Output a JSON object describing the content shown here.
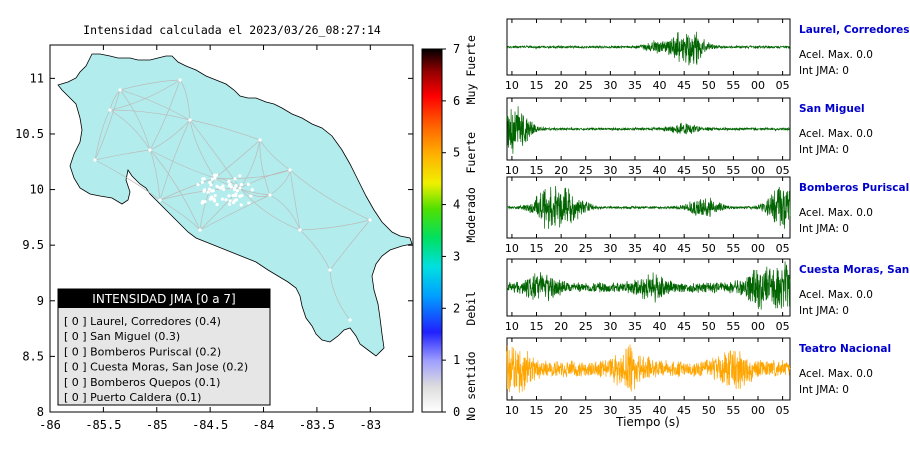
{
  "map": {
    "title": "Intensidad calculada el 2023/03/26_08:27:14",
    "x_ticks": [
      "-86",
      "-85.5",
      "-85",
      "-84.5",
      "-84",
      "-83.5",
      "-83"
    ],
    "y_ticks": [
      "11",
      "10.5",
      "10",
      "9.5",
      "9",
      "8.5",
      "8"
    ],
    "xlim": [
      -86,
      -82.6
    ],
    "ylim": [
      8,
      11.3
    ],
    "land_color": "#b3ecec",
    "road_color": "#bbbbbb"
  },
  "colorbar": {
    "ticks": [
      "0",
      "1",
      "2",
      "3",
      "4",
      "5",
      "6",
      "7"
    ],
    "labels": [
      {
        "text": "No sentido",
        "v": 0.5
      },
      {
        "text": "Debil",
        "v": 2
      },
      {
        "text": "Moderado",
        "v": 3.8
      },
      {
        "text": "Fuerte",
        "v": 5
      },
      {
        "text": "Muy Fuerte",
        "v": 6.6
      }
    ]
  },
  "legend": {
    "title": "INTENSIDAD JMA [0 a 7]",
    "items": [
      "[ 0 ]  Laurel, Corredores (0.4)",
      "[ 0 ]  San Miguel (0.3)",
      "[ 0 ]  Bomberos Puriscal (0.2)",
      "[ 0 ]  Cuesta Moras, San Jose (0.2)",
      "[ 0 ]  Bomberos Quepos (0.1)",
      "[ 0 ]  Puerto Caldera (0.1)"
    ]
  },
  "chart_data": [
    {
      "type": "map",
      "title": "Intensidad calculada el 2023/03/26_08:27:14",
      "xlim": [
        -86,
        -82.6
      ],
      "ylim": [
        8,
        11.3
      ],
      "x_ticks": [
        -86,
        -85.5,
        -85,
        -84.5,
        -84,
        -83.5,
        -83
      ],
      "y_ticks": [
        11,
        10.5,
        10,
        9.5,
        9,
        8.5,
        8
      ],
      "colorbar": {
        "min": 0,
        "max": 7,
        "labels": [
          "No sentido",
          "Debil",
          "Moderado",
          "Fuerte",
          "Muy Fuerte"
        ]
      },
      "stations": [
        {
          "name": "Laurel, Corredores",
          "jma": 0,
          "intensity": 0.4
        },
        {
          "name": "San Miguel",
          "jma": 0,
          "intensity": 0.3
        },
        {
          "name": "Bomberos Puriscal",
          "jma": 0,
          "intensity": 0.2
        },
        {
          "name": "Cuesta Moras, San Jose",
          "jma": 0,
          "intensity": 0.2
        },
        {
          "name": "Bomberos Quepos",
          "jma": 0,
          "intensity": 0.1
        },
        {
          "name": "Puerto Caldera",
          "jma": 0,
          "intensity": 0.1
        }
      ]
    },
    {
      "type": "line",
      "xlabel": "Tiempo (s)",
      "x_ticks": [
        "10",
        "15",
        "20",
        "25",
        "30",
        "35",
        "40",
        "45",
        "50",
        "55",
        "00",
        "05"
      ],
      "series": [
        {
          "name": "Laurel, Corredores",
          "acel_max": "0.0",
          "int_jma": "0",
          "color": "#006400",
          "bursts": [
            {
              "t": 46,
              "a": 0.9
            },
            {
              "t": 40,
              "a": 0.25
            }
          ]
        },
        {
          "name": "San Miguel",
          "acel_max": "0.0",
          "int_jma": "0",
          "color": "#006400",
          "bursts": [
            {
              "t": 10.5,
              "a": 0.9
            },
            {
              "t": 45,
              "a": 0.2
            }
          ]
        },
        {
          "name": "Bomberos Puriscal",
          "acel_max": "0.0",
          "int_jma": "0",
          "color": "#006400",
          "bursts": [
            {
              "t": 17.5,
              "a": 0.8
            },
            {
              "t": 22,
              "a": 0.6
            },
            {
              "t": 49,
              "a": 0.4
            },
            {
              "t": 65,
              "a": 0.9
            }
          ]
        },
        {
          "name": "Cuesta Moras, San Jose",
          "acel_max": "0.0",
          "int_jma": "0",
          "color": "#006400",
          "bursts": [
            {
              "t": 16,
              "a": 0.5
            },
            {
              "t": 38,
              "a": 0.4
            },
            {
              "t": 60,
              "a": 0.6
            },
            {
              "t": 65.5,
              "a": 0.9
            }
          ]
        },
        {
          "name": "Teatro Nacional",
          "acel_max": "0.0",
          "int_jma": "0",
          "color": "#ffa500",
          "bursts": [
            {
              "t": 10.5,
              "a": 0.8
            },
            {
              "t": 34,
              "a": 0.6
            },
            {
              "t": 55,
              "a": 0.6
            }
          ]
        }
      ]
    }
  ],
  "waveforms": {
    "acel_label": "Acel. Max. 0.0",
    "int_label": "Int JMA: 0",
    "xlabel": "Tiempo (s)",
    "x_ticks": [
      "10",
      "15",
      "20",
      "25",
      "30",
      "35",
      "40",
      "45",
      "50",
      "55",
      "00",
      "05"
    ],
    "stations": [
      {
        "name": "Laurel, Corredores",
        "color": "#006400"
      },
      {
        "name": "San Miguel",
        "color": "#006400"
      },
      {
        "name": "Bomberos Puriscal",
        "color": "#006400"
      },
      {
        "name": "Cuesta Moras, San Jose",
        "color": "#006400"
      },
      {
        "name": "Teatro Nacional",
        "color": "#ffa500"
      }
    ],
    "title_color": "#0000cc"
  }
}
